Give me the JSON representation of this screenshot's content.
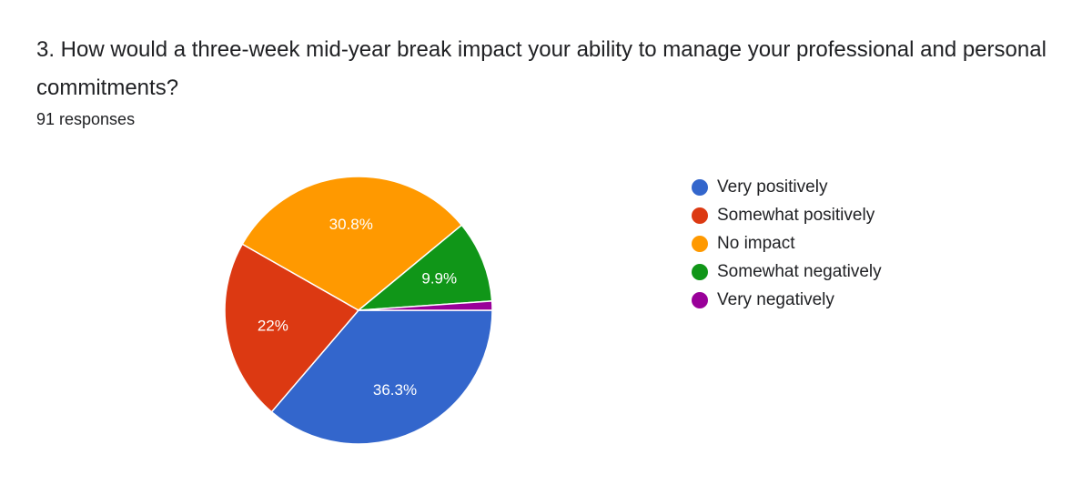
{
  "question": {
    "title": "3. How would a three-week mid-year break impact your ability to manage your professional and personal commitments?",
    "responses": "91 responses"
  },
  "chart_data": {
    "type": "pie",
    "title": "3. How would a three-week mid-year break impact your ability to manage your professional and personal commitments?",
    "total_responses": 91,
    "legend_position": "right",
    "categories": [
      "Very positively",
      "Somewhat positively",
      "No impact",
      "Somewhat negatively",
      "Very negatively"
    ],
    "counts": [
      33,
      20,
      28,
      9,
      1
    ],
    "values": [
      36.3,
      22.0,
      30.8,
      9.9,
      1.1
    ],
    "labels": [
      "36.3%",
      "22%",
      "30.8%",
      "9.9%",
      ""
    ],
    "colors": [
      "#3366cc",
      "#dc3912",
      "#ff9900",
      "#109618",
      "#990099"
    ]
  }
}
